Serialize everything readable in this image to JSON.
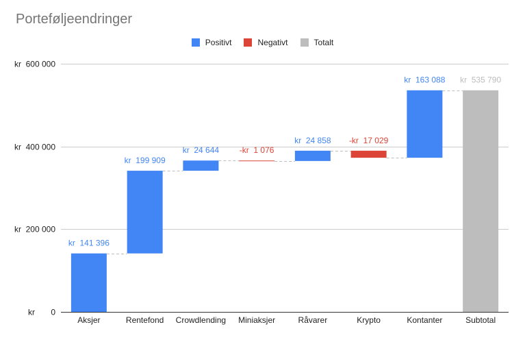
{
  "chart_data": {
    "type": "bar",
    "subtype": "waterfall",
    "title": "Porteføljeendringer",
    "categories": [
      "Aksjer",
      "Rentefond",
      "Crowdlending",
      "Miniaksjer",
      "Råvarer",
      "Krypto",
      "Kontanter",
      "Subtotal"
    ],
    "values": [
      141396,
      199909,
      24644,
      -1076,
      24858,
      -17029,
      163088,
      535790
    ],
    "value_labels": [
      "kr  141 396",
      "kr  199 909",
      "kr  24 644",
      "-kr  1 076",
      "kr  24 858",
      "-kr  17 029",
      "kr  163 088",
      "kr  535 790"
    ],
    "bar_kinds": [
      "positive",
      "positive",
      "positive",
      "negative",
      "positive",
      "negative",
      "positive",
      "total"
    ],
    "ylim": [
      0,
      600000
    ],
    "yticks": [
      0,
      200000,
      400000,
      600000
    ],
    "ytick_labels": [
      "kr       0",
      "kr  200 000",
      "kr  400 000",
      "kr  600 000"
    ],
    "legend": {
      "position": "top",
      "entries": [
        {
          "label": "Positivt",
          "kind": "positive"
        },
        {
          "label": "Negativt",
          "kind": "negative"
        },
        {
          "label": "Totalt",
          "kind": "total"
        }
      ]
    },
    "colors": {
      "positive": "#4285f4",
      "negative": "#db4437",
      "total": "#bdbdbd",
      "gridline": "#cccccc",
      "connector": "#bdbdbd",
      "title": "#757575",
      "axis_text": "#222222"
    },
    "grid": true,
    "connectors": true
  }
}
